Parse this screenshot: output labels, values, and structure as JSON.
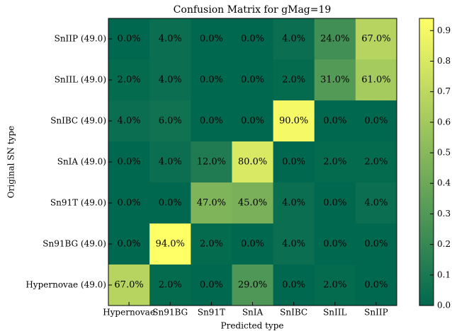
{
  "chart_data": {
    "type": "heatmap",
    "title": "Confusion Matrix for gMag=19",
    "xlabel": "Predicted type",
    "ylabel": "Original SN type",
    "columns": [
      "Hypernovae",
      "Sn91BG",
      "Sn91T",
      "SnIA",
      "SnIBC",
      "SnIIL",
      "SnIIP"
    ],
    "rows": [
      "SnIIP (49.0)",
      "SnIIL (49.0)",
      "SnIBC (49.0)",
      "SnIA (49.0)",
      "Sn91T (49.0)",
      "Sn91BG (49.0)",
      "Hypernovae (49.0)"
    ],
    "values": [
      [
        0.0,
        0.04,
        0.0,
        0.0,
        0.04,
        0.24,
        0.67
      ],
      [
        0.02,
        0.04,
        0.0,
        0.0,
        0.02,
        0.31,
        0.61
      ],
      [
        0.04,
        0.06,
        0.0,
        0.0,
        0.9,
        0.0,
        0.0
      ],
      [
        0.0,
        0.04,
        0.12,
        0.8,
        0.0,
        0.02,
        0.02
      ],
      [
        0.0,
        0.0,
        0.47,
        0.45,
        0.04,
        0.0,
        0.04
      ],
      [
        0.0,
        0.94,
        0.02,
        0.0,
        0.04,
        0.0,
        0.0
      ],
      [
        0.67,
        0.02,
        0.0,
        0.29,
        0.0,
        0.02,
        0.0
      ]
    ],
    "value_labels": [
      [
        "0.0%",
        "4.0%",
        "0.0%",
        "0.0%",
        "4.0%",
        "24.0%",
        "67.0%"
      ],
      [
        "2.0%",
        "4.0%",
        "0.0%",
        "0.0%",
        "2.0%",
        "31.0%",
        "61.0%"
      ],
      [
        "4.0%",
        "6.0%",
        "0.0%",
        "0.0%",
        "90.0%",
        "0.0%",
        "0.0%"
      ],
      [
        "0.0%",
        "4.0%",
        "12.0%",
        "80.0%",
        "0.0%",
        "2.0%",
        "2.0%"
      ],
      [
        "0.0%",
        "0.0%",
        "47.0%",
        "45.0%",
        "4.0%",
        "0.0%",
        "4.0%"
      ],
      [
        "0.0%",
        "94.0%",
        "2.0%",
        "0.0%",
        "4.0%",
        "0.0%",
        "0.0%"
      ],
      [
        "67.0%",
        "2.0%",
        "0.0%",
        "29.0%",
        "0.0%",
        "2.0%",
        "0.0%"
      ]
    ],
    "colormap": [
      "#00684f",
      "#ffff66"
    ],
    "zlim": [
      0,
      0.94
    ],
    "zticks": [
      {
        "value": 0,
        "label": "0.0"
      },
      0.1,
      0.2,
      0.3,
      0.4,
      0.5,
      0.6,
      0.7,
      0.8,
      0.9
    ]
  }
}
